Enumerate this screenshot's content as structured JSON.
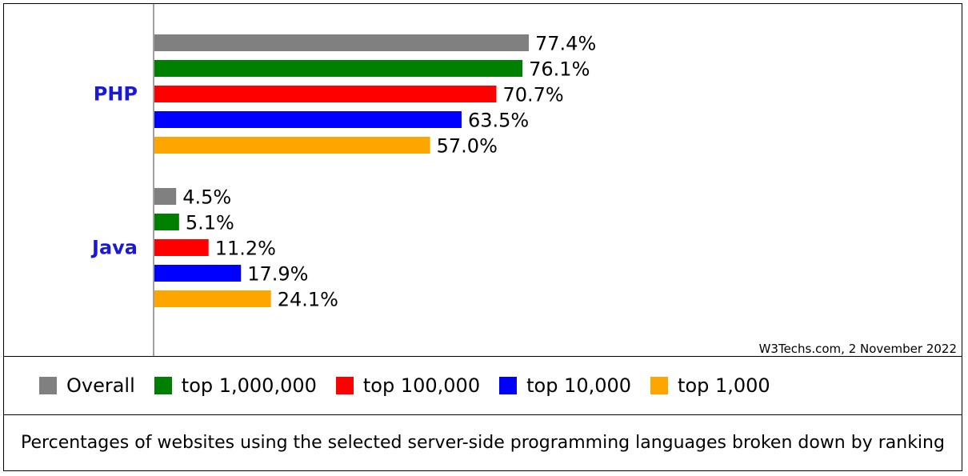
{
  "chart_data": {
    "type": "bar",
    "orientation": "horizontal",
    "categories": [
      "PHP",
      "Java"
    ],
    "series": [
      {
        "name": "Overall",
        "color": "#808080",
        "values": [
          77.4,
          4.5
        ],
        "labels": [
          "77.4%",
          "4.5%"
        ]
      },
      {
        "name": "top 1,000,000",
        "color": "#008000",
        "values": [
          76.1,
          5.1
        ],
        "labels": [
          "76.1%",
          "5.1%"
        ]
      },
      {
        "name": "top 100,000",
        "color": "#ff0000",
        "values": [
          70.7,
          11.2
        ],
        "labels": [
          "70.7%",
          "11.2%"
        ]
      },
      {
        "name": "top 10,000",
        "color": "#0000ff",
        "values": [
          63.5,
          17.9
        ],
        "labels": [
          "63.5%",
          "17.9%"
        ]
      },
      {
        "name": "top 1,000",
        "color": "#ffa500",
        "values": [
          57.0,
          24.1
        ],
        "labels": [
          "57.0%",
          "24.1%"
        ]
      }
    ],
    "xlim": [
      0,
      100
    ],
    "unit": "%",
    "grid": false,
    "legend_position": "bottom",
    "category_label_color": "#1a1ad6"
  },
  "source_note": "W3Techs.com, 2 November 2022",
  "caption": "Percentages of websites using the selected server-side programming languages broken down by ranking"
}
